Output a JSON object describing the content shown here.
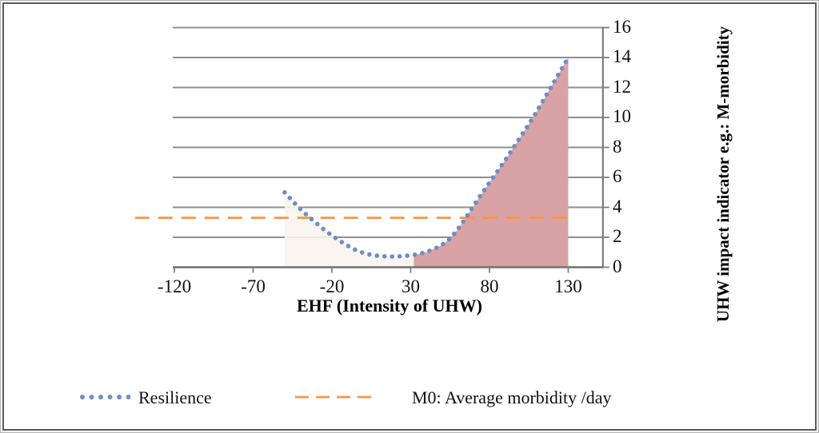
{
  "chart_data": {
    "type": "line",
    "x_axis": {
      "title": "EHF (Intensity of UHW)",
      "ticks": [
        -120,
        -70,
        -20,
        30,
        80,
        130
      ],
      "min": -120,
      "max": 152,
      "tick_step": 50
    },
    "y_axis": {
      "title": "UHW impact indicator e.g.: M-morbidity",
      "ticks": [
        0,
        2,
        4,
        6,
        8,
        10,
        12,
        14,
        16
      ],
      "min": 0,
      "max": 16,
      "tick_step": 2
    },
    "grid": {
      "on": true,
      "gridline_color": "#8f8f8f",
      "axis_color": "#717171",
      "tick_color": "#7f7f7f"
    },
    "series": [
      {
        "name": "Resilience",
        "style": "dotted",
        "color": "#6d8ec6",
        "points": [
          [
            -50,
            5.0
          ],
          [
            -45,
            4.42
          ],
          [
            -40,
            3.88
          ],
          [
            -35,
            3.4
          ],
          [
            -30,
            2.95
          ],
          [
            -25,
            2.52
          ],
          [
            -20,
            2.12
          ],
          [
            -15,
            1.76
          ],
          [
            -10,
            1.44
          ],
          [
            -5,
            1.16
          ],
          [
            0,
            0.95
          ],
          [
            5,
            0.82
          ],
          [
            10,
            0.75
          ],
          [
            15,
            0.72
          ],
          [
            20,
            0.72
          ],
          [
            25,
            0.74
          ],
          [
            30,
            0.79
          ],
          [
            35,
            0.88
          ],
          [
            40,
            1.02
          ],
          [
            45,
            1.22
          ],
          [
            50,
            1.5
          ],
          [
            55,
            1.9
          ],
          [
            60,
            2.55
          ],
          [
            65,
            3.3
          ],
          [
            70,
            4.1
          ],
          [
            75,
            4.9
          ],
          [
            80,
            5.65
          ],
          [
            85,
            6.4
          ],
          [
            90,
            7.15
          ],
          [
            95,
            7.95
          ],
          [
            100,
            8.75
          ],
          [
            105,
            9.55
          ],
          [
            110,
            10.4
          ],
          [
            115,
            11.3
          ],
          [
            120,
            12.2
          ],
          [
            125,
            13.1
          ],
          [
            130,
            14.0
          ]
        ]
      },
      {
        "name": "M0: Average morbidity /day",
        "style": "dashed",
        "color": "#f79646",
        "value": 3.3,
        "x_start": -145,
        "x_end": 132
      }
    ],
    "shaded_regions": [
      {
        "name": "pre-threshold-area",
        "x_start": -50,
        "x_end": 32,
        "fill": "#faf4ee",
        "opacity": 0.9
      },
      {
        "name": "excess-impact-area",
        "x_start": 32,
        "x_end": 130,
        "fill": "#d9a2a4",
        "opacity": 1
      }
    ],
    "legend_position": "bottom"
  },
  "legend": {
    "items": [
      {
        "label": "Resilience",
        "swatch": "blue-dotted-line"
      },
      {
        "label": "M0: Average morbidity /day",
        "swatch": "orange-dashed-line"
      }
    ]
  }
}
